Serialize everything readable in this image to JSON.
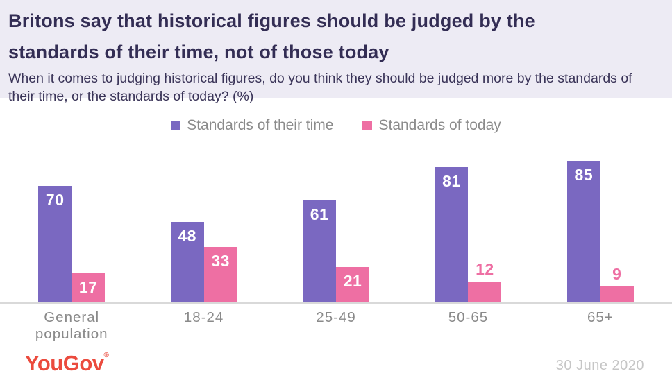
{
  "header": {
    "title": "Britons say that historical figures should be judged by the standards of their time, not of those today",
    "subtitle": "When it comes to judging historical figures, do you think they should be judged more by the standards of their time, or the standards of today? (%)"
  },
  "legend": [
    {
      "label": "Standards of their time",
      "color": "#7a68c1"
    },
    {
      "label": "Standards of today",
      "color": "#ee6fa3"
    }
  ],
  "chart_data": {
    "type": "bar",
    "categories": [
      "General population",
      "18-24",
      "25-49",
      "50-65",
      "65+"
    ],
    "series": [
      {
        "name": "Standards of their time",
        "color": "#7a68c1",
        "values": [
          70,
          48,
          61,
          81,
          85
        ],
        "label_position": [
          "inside",
          "inside",
          "inside",
          "inside",
          "inside"
        ]
      },
      {
        "name": "Standards of today",
        "color": "#ee6fa3",
        "values": [
          17,
          33,
          21,
          12,
          9
        ],
        "label_position": [
          "inside",
          "inside",
          "inside",
          "above",
          "above"
        ]
      }
    ],
    "title": "Britons say that historical figures should be judged by the standards of their time, not of those today",
    "xlabel": "",
    "ylabel": "",
    "ylim": [
      0,
      100
    ],
    "grid": false,
    "legend_position": "top",
    "value_labels_shown": true
  },
  "footer": {
    "logo_text": "YouGov",
    "logo_registered": "®",
    "date": "30 June 2020"
  },
  "colors": {
    "header_bg": "#edebf4",
    "title_text": "#332d54",
    "legend_text": "#8b8b8b",
    "axis_line": "#d9d9d9",
    "category_text": "#8a8a8a",
    "logo_red": "#eb4b3e",
    "date_gray": "#c6c6c6"
  }
}
